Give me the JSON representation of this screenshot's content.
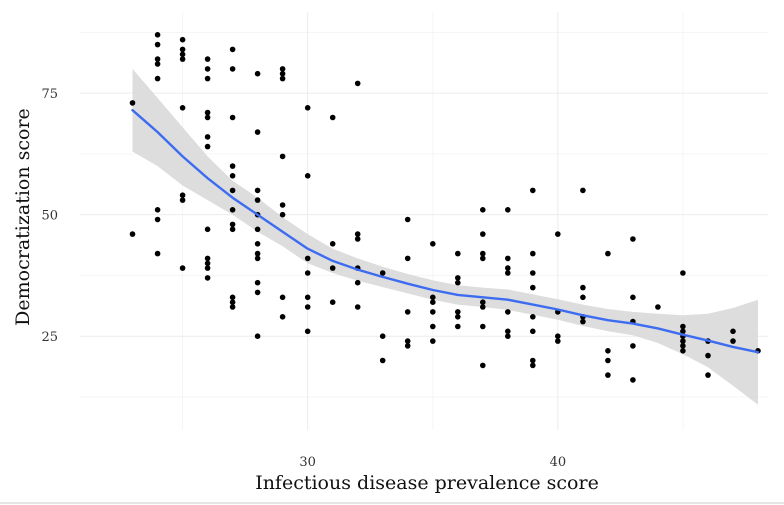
{
  "chart_data": {
    "type": "scatter",
    "title": "",
    "xlabel": "Infectious disease prevalence score",
    "ylabel": "Democratization score",
    "xlim": [
      20.9,
      48.4
    ],
    "ylim": [
      5.7,
      91.7
    ],
    "x_ticks": [
      30,
      40
    ],
    "y_ticks": [
      25,
      50,
      75
    ],
    "x_minor_ticks": [
      25,
      35,
      45
    ],
    "y_minor_ticks": [
      12.5,
      37.5,
      62.5,
      87.5
    ],
    "grid": true,
    "legend": "none",
    "colors": {
      "points": "#000000",
      "smooth_line": "#3d6cf0",
      "confidence_band": "#d9d9d9"
    },
    "points": [
      [
        23,
        73
      ],
      [
        23,
        46
      ],
      [
        24,
        87
      ],
      [
        24,
        85
      ],
      [
        24,
        82
      ],
      [
        24,
        81
      ],
      [
        24,
        78
      ],
      [
        24,
        51
      ],
      [
        24,
        49
      ],
      [
        24,
        42
      ],
      [
        25,
        86
      ],
      [
        25,
        84
      ],
      [
        25,
        83
      ],
      [
        25,
        82
      ],
      [
        25,
        72
      ],
      [
        25,
        54
      ],
      [
        25,
        53
      ],
      [
        25,
        39
      ],
      [
        26,
        82
      ],
      [
        26,
        80
      ],
      [
        26,
        78
      ],
      [
        26,
        71
      ],
      [
        26,
        70
      ],
      [
        26,
        66
      ],
      [
        26,
        64
      ],
      [
        26,
        47
      ],
      [
        26,
        41
      ],
      [
        26,
        40
      ],
      [
        26,
        39
      ],
      [
        26,
        37
      ],
      [
        27,
        84
      ],
      [
        27,
        80
      ],
      [
        27,
        70
      ],
      [
        27,
        60
      ],
      [
        27,
        58
      ],
      [
        27,
        55
      ],
      [
        27,
        51
      ],
      [
        27,
        48
      ],
      [
        27,
        47
      ],
      [
        27,
        33
      ],
      [
        27,
        32
      ],
      [
        27,
        31
      ],
      [
        28,
        79
      ],
      [
        28,
        67
      ],
      [
        28,
        55
      ],
      [
        28,
        53
      ],
      [
        28,
        50
      ],
      [
        28,
        47
      ],
      [
        28,
        44
      ],
      [
        28,
        42
      ],
      [
        28,
        41
      ],
      [
        28,
        36
      ],
      [
        28,
        34
      ],
      [
        28,
        25
      ],
      [
        29,
        80
      ],
      [
        29,
        79
      ],
      [
        29,
        78
      ],
      [
        29,
        62
      ],
      [
        29,
        52
      ],
      [
        29,
        50
      ],
      [
        29,
        33
      ],
      [
        29,
        29
      ],
      [
        30,
        72
      ],
      [
        30,
        58
      ],
      [
        30,
        41
      ],
      [
        30,
        38
      ],
      [
        30,
        33
      ],
      [
        30,
        31
      ],
      [
        30,
        26
      ],
      [
        31,
        70
      ],
      [
        31,
        44
      ],
      [
        31,
        39
      ],
      [
        31,
        32
      ],
      [
        32,
        77
      ],
      [
        32,
        46
      ],
      [
        32,
        45
      ],
      [
        32,
        39
      ],
      [
        32,
        36
      ],
      [
        32,
        31
      ],
      [
        33,
        38
      ],
      [
        33,
        25
      ],
      [
        33,
        20
      ],
      [
        34,
        49
      ],
      [
        34,
        41
      ],
      [
        34,
        30
      ],
      [
        34,
        24
      ],
      [
        34,
        23
      ],
      [
        35,
        44
      ],
      [
        35,
        33
      ],
      [
        35,
        32
      ],
      [
        35,
        30
      ],
      [
        35,
        27
      ],
      [
        35,
        24
      ],
      [
        36,
        42
      ],
      [
        36,
        37
      ],
      [
        36,
        36
      ],
      [
        36,
        30
      ],
      [
        36,
        29
      ],
      [
        36,
        27
      ],
      [
        37,
        51
      ],
      [
        37,
        46
      ],
      [
        37,
        42
      ],
      [
        37,
        41
      ],
      [
        37,
        32
      ],
      [
        37,
        31
      ],
      [
        37,
        27
      ],
      [
        37,
        19
      ],
      [
        38,
        51
      ],
      [
        38,
        41
      ],
      [
        38,
        39
      ],
      [
        38,
        38
      ],
      [
        38,
        30
      ],
      [
        38,
        26
      ],
      [
        38,
        25
      ],
      [
        39,
        55
      ],
      [
        39,
        42
      ],
      [
        39,
        38
      ],
      [
        39,
        35
      ],
      [
        39,
        29
      ],
      [
        39,
        26
      ],
      [
        39,
        20
      ],
      [
        39,
        19
      ],
      [
        40,
        46
      ],
      [
        40,
        30
      ],
      [
        40,
        25
      ],
      [
        40,
        24
      ],
      [
        41,
        55
      ],
      [
        41,
        35
      ],
      [
        41,
        33
      ],
      [
        41,
        29
      ],
      [
        41,
        28
      ],
      [
        42,
        42
      ],
      [
        42,
        22
      ],
      [
        42,
        20
      ],
      [
        42,
        17
      ],
      [
        43,
        45
      ],
      [
        43,
        33
      ],
      [
        43,
        28
      ],
      [
        43,
        23
      ],
      [
        43,
        16
      ],
      [
        44,
        31
      ],
      [
        45,
        38
      ],
      [
        45,
        27
      ],
      [
        45,
        26
      ],
      [
        45,
        25
      ],
      [
        45,
        24
      ],
      [
        45,
        23
      ],
      [
        45,
        22
      ],
      [
        46,
        24
      ],
      [
        46,
        21
      ],
      [
        46,
        17
      ],
      [
        47,
        26
      ],
      [
        47,
        24
      ],
      [
        48,
        22
      ]
    ],
    "smooth_line": [
      [
        23,
        71.5
      ],
      [
        24,
        67
      ],
      [
        25,
        62
      ],
      [
        26,
        57.5
      ],
      [
        27,
        53.5
      ],
      [
        28,
        50
      ],
      [
        29,
        46.5
      ],
      [
        30,
        43
      ],
      [
        31,
        40.5
      ],
      [
        32,
        38.7
      ],
      [
        33,
        37.2
      ],
      [
        34,
        35.8
      ],
      [
        35,
        34.5
      ],
      [
        36,
        33.5
      ],
      [
        37,
        33
      ],
      [
        38,
        32.5
      ],
      [
        39,
        31.5
      ],
      [
        40,
        30.5
      ],
      [
        41,
        29.3
      ],
      [
        42,
        28.3
      ],
      [
        43,
        27.6
      ],
      [
        44,
        26.6
      ],
      [
        45,
        25.3
      ],
      [
        46,
        24.1
      ],
      [
        47,
        22.8
      ],
      [
        48,
        21.7
      ]
    ],
    "band_upper": [
      [
        23,
        80
      ],
      [
        24,
        74
      ],
      [
        25,
        68
      ],
      [
        26,
        62
      ],
      [
        27,
        57
      ],
      [
        28,
        53.5
      ],
      [
        29,
        49.5
      ],
      [
        30,
        46
      ],
      [
        31,
        43
      ],
      [
        32,
        41
      ],
      [
        33,
        39.3
      ],
      [
        34,
        37.8
      ],
      [
        35,
        36.5
      ],
      [
        36,
        35.5
      ],
      [
        37,
        35
      ],
      [
        38,
        34.6
      ],
      [
        39,
        33.6
      ],
      [
        40,
        32.6
      ],
      [
        41,
        31.5
      ],
      [
        42,
        30.6
      ],
      [
        43,
        30
      ],
      [
        44,
        29.6
      ],
      [
        45,
        29.3
      ],
      [
        46,
        29.6
      ],
      [
        47,
        30.8
      ],
      [
        48,
        32.5
      ]
    ],
    "band_lower": [
      [
        23,
        63
      ],
      [
        24,
        60
      ],
      [
        25,
        56
      ],
      [
        26,
        53
      ],
      [
        27,
        50
      ],
      [
        28,
        46.5
      ],
      [
        29,
        43.5
      ],
      [
        30,
        40
      ],
      [
        31,
        38
      ],
      [
        32,
        36.4
      ],
      [
        33,
        35.1
      ],
      [
        34,
        33.8
      ],
      [
        35,
        32.5
      ],
      [
        36,
        31.5
      ],
      [
        37,
        31
      ],
      [
        38,
        30.4
      ],
      [
        39,
        29.4
      ],
      [
        40,
        28.4
      ],
      [
        41,
        27.1
      ],
      [
        42,
        26
      ],
      [
        43,
        25.2
      ],
      [
        44,
        23.6
      ],
      [
        45,
        21.3
      ],
      [
        46,
        18.6
      ],
      [
        47,
        14.8
      ],
      [
        48,
        10.9
      ]
    ]
  }
}
